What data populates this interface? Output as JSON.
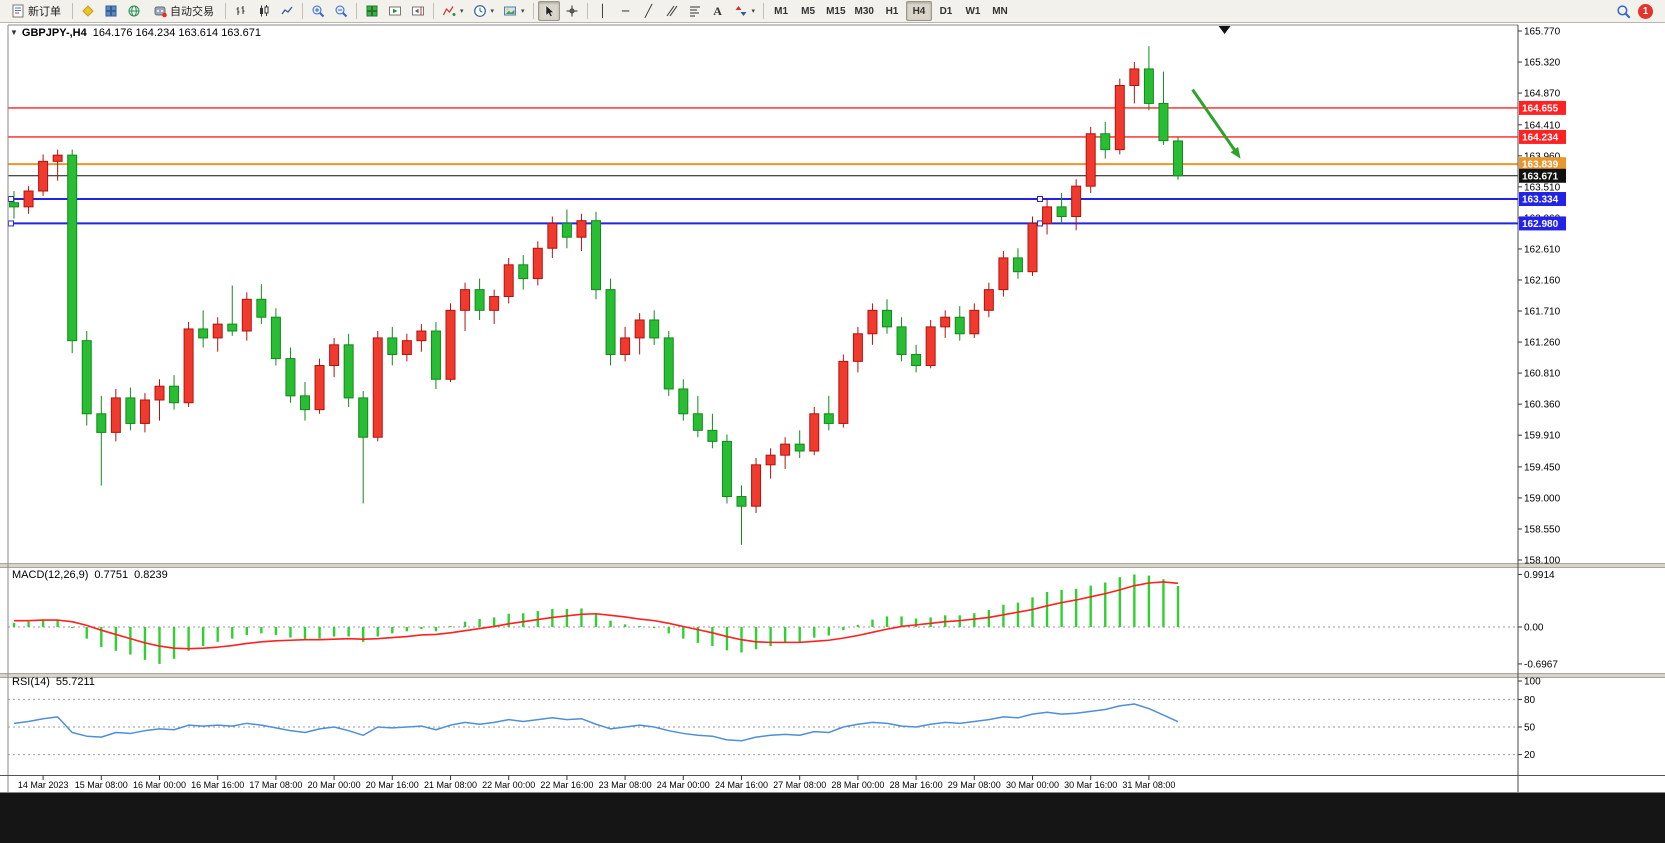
{
  "toolbar": {
    "new_order": "新订单",
    "autotrading": "自动交易",
    "timeframes": [
      "M1",
      "M5",
      "M15",
      "M30",
      "H1",
      "H4",
      "D1",
      "W1",
      "MN"
    ],
    "active_timeframe": "H4",
    "notification_count": "1"
  },
  "chart_title": {
    "symbol_period": "GBPJPY-,H4",
    "ohlc_text": "164.176 164.234 163.614 163.671"
  },
  "indicator_labels": {
    "macd_name": "MACD(12,26,9)",
    "macd_value": "0.7751",
    "macd_signal": "0.8239",
    "rsi_name": "RSI(14)",
    "rsi_value": "55.7211"
  },
  "chart_data": {
    "type": "candlestick",
    "symbol": "GBPJPY-",
    "period": "H4",
    "last_ohlc": {
      "open": 164.176,
      "high": 164.234,
      "low": 163.614,
      "close": 163.671
    },
    "price_axis": {
      "min": 158.1,
      "max": 165.77,
      "ticks": [
        "165.770",
        "165.320",
        "164.870",
        "164.410",
        "163.960",
        "163.510",
        "163.060",
        "162.610",
        "162.160",
        "161.710",
        "161.260",
        "160.810",
        "160.360",
        "159.910",
        "159.450",
        "159.000",
        "158.550",
        "158.100"
      ]
    },
    "colors": {
      "up": "#f03a2e",
      "up_edge": "#b01510",
      "down": "#28bd33",
      "down_edge": "#128a1c",
      "macd_hist": "#2fd12f",
      "macd_signal": "#ff2020",
      "rsi_line": "#4f8fd5",
      "arrow": "#2da32d"
    },
    "hlines": [
      {
        "price": 164.655,
        "color": "#ff2222",
        "label": "164.655",
        "width": 1.4
      },
      {
        "price": 164.234,
        "color": "#ff2222",
        "label": "164.234",
        "width": 1.4
      },
      {
        "price": 163.839,
        "color": "#e8962e",
        "label": "163.839",
        "width": 2
      },
      {
        "price": 163.671,
        "color": "#111111",
        "label": "163.671",
        "width": 1,
        "role": "current-price"
      },
      {
        "price": 163.334,
        "color": "#2323e8",
        "label": "163.334",
        "width": 2,
        "handles": true
      },
      {
        "price": 162.98,
        "color": "#2323e8",
        "label": "162.980",
        "width": 2,
        "handles": true
      }
    ],
    "candles": [
      [
        163.28,
        163.45,
        163.05,
        163.22
      ],
      [
        163.22,
        163.52,
        163.12,
        163.45
      ],
      [
        163.45,
        163.98,
        163.38,
        163.88
      ],
      [
        163.88,
        164.05,
        163.6,
        163.97
      ],
      [
        163.97,
        164.05,
        161.1,
        161.28
      ],
      [
        161.28,
        161.42,
        160.05,
        160.22
      ],
      [
        160.22,
        160.48,
        159.18,
        159.95
      ],
      [
        159.95,
        160.58,
        159.82,
        160.45
      ],
      [
        160.45,
        160.6,
        159.98,
        160.08
      ],
      [
        160.08,
        160.52,
        159.95,
        160.42
      ],
      [
        160.42,
        160.72,
        160.12,
        160.62
      ],
      [
        160.62,
        160.78,
        160.28,
        160.38
      ],
      [
        160.38,
        161.55,
        160.32,
        161.45
      ],
      [
        161.45,
        161.72,
        161.18,
        161.32
      ],
      [
        161.32,
        161.62,
        161.12,
        161.52
      ],
      [
        161.52,
        162.08,
        161.35,
        161.42
      ],
      [
        161.42,
        161.98,
        161.28,
        161.88
      ],
      [
        161.88,
        162.1,
        161.52,
        161.62
      ],
      [
        161.62,
        161.75,
        160.92,
        161.02
      ],
      [
        161.02,
        161.18,
        160.38,
        160.48
      ],
      [
        160.48,
        160.68,
        160.12,
        160.28
      ],
      [
        160.28,
        161.02,
        160.22,
        160.92
      ],
      [
        160.92,
        161.32,
        160.75,
        161.22
      ],
      [
        161.22,
        161.38,
        160.32,
        160.45
      ],
      [
        160.45,
        160.55,
        158.92,
        159.88
      ],
      [
        159.88,
        161.42,
        159.82,
        161.32
      ],
      [
        161.32,
        161.48,
        160.92,
        161.08
      ],
      [
        161.08,
        161.38,
        160.98,
        161.28
      ],
      [
        161.28,
        161.52,
        161.12,
        161.42
      ],
      [
        161.42,
        161.55,
        160.58,
        160.72
      ],
      [
        160.72,
        161.82,
        160.68,
        161.72
      ],
      [
        161.72,
        162.12,
        161.42,
        162.02
      ],
      [
        162.02,
        162.18,
        161.58,
        161.72
      ],
      [
        161.72,
        162.02,
        161.52,
        161.92
      ],
      [
        161.92,
        162.48,
        161.82,
        162.38
      ],
      [
        162.38,
        162.52,
        162.02,
        162.18
      ],
      [
        162.18,
        162.72,
        162.08,
        162.62
      ],
      [
        162.62,
        163.08,
        162.48,
        162.98
      ],
      [
        162.98,
        163.18,
        162.62,
        162.78
      ],
      [
        162.78,
        163.12,
        162.58,
        163.02
      ],
      [
        163.02,
        163.15,
        161.88,
        162.02
      ],
      [
        162.02,
        162.18,
        160.92,
        161.08
      ],
      [
        161.08,
        161.48,
        160.98,
        161.32
      ],
      [
        161.32,
        161.68,
        161.08,
        161.58
      ],
      [
        161.58,
        161.72,
        161.22,
        161.32
      ],
      [
        161.32,
        161.42,
        160.48,
        160.58
      ],
      [
        160.58,
        160.72,
        160.12,
        160.22
      ],
      [
        160.22,
        160.48,
        159.88,
        159.98
      ],
      [
        159.98,
        160.22,
        159.72,
        159.82
      ],
      [
        159.82,
        159.92,
        158.92,
        159.02
      ],
      [
        159.02,
        159.18,
        158.32,
        158.88
      ],
      [
        158.88,
        159.58,
        158.78,
        159.48
      ],
      [
        159.48,
        159.72,
        159.28,
        159.62
      ],
      [
        159.62,
        159.88,
        159.42,
        159.78
      ],
      [
        159.78,
        159.98,
        159.58,
        159.68
      ],
      [
        159.68,
        160.32,
        159.62,
        160.22
      ],
      [
        160.22,
        160.48,
        159.98,
        160.08
      ],
      [
        160.08,
        161.08,
        160.02,
        160.98
      ],
      [
        160.98,
        161.48,
        160.82,
        161.38
      ],
      [
        161.38,
        161.82,
        161.22,
        161.72
      ],
      [
        161.72,
        161.88,
        161.38,
        161.48
      ],
      [
        161.48,
        161.62,
        160.98,
        161.08
      ],
      [
        161.08,
        161.22,
        160.82,
        160.92
      ],
      [
        160.92,
        161.58,
        160.88,
        161.48
      ],
      [
        161.48,
        161.72,
        161.32,
        161.62
      ],
      [
        161.62,
        161.78,
        161.28,
        161.38
      ],
      [
        161.38,
        161.82,
        161.32,
        161.72
      ],
      [
        161.72,
        162.12,
        161.62,
        162.02
      ],
      [
        162.02,
        162.58,
        161.92,
        162.48
      ],
      [
        162.48,
        162.62,
        162.18,
        162.28
      ],
      [
        162.28,
        163.08,
        162.22,
        162.98
      ],
      [
        162.98,
        163.32,
        162.82,
        163.22
      ],
      [
        163.22,
        163.42,
        162.98,
        163.08
      ],
      [
        163.08,
        163.62,
        162.88,
        163.52
      ],
      [
        163.52,
        164.38,
        163.42,
        164.28
      ],
      [
        164.28,
        164.45,
        163.92,
        164.05
      ],
      [
        164.05,
        165.08,
        163.98,
        164.98
      ],
      [
        164.98,
        165.32,
        164.72,
        165.22
      ],
      [
        165.22,
        165.55,
        164.62,
        164.72
      ],
      [
        164.72,
        165.18,
        164.12,
        164.18
      ],
      [
        164.176,
        164.234,
        163.614,
        163.671
      ]
    ],
    "time_labels": [
      {
        "index": 2,
        "text": "14 Mar 2023"
      },
      {
        "index": 6,
        "text": "15 Mar 08:00"
      },
      {
        "index": 10,
        "text": "16 Mar 00:00"
      },
      {
        "index": 14,
        "text": "16 Mar 16:00"
      },
      {
        "index": 18,
        "text": "17 Mar 08:00"
      },
      {
        "index": 22,
        "text": "20 Mar 00:00"
      },
      {
        "index": 26,
        "text": "20 Mar 16:00"
      },
      {
        "index": 30,
        "text": "21 Mar 08:00"
      },
      {
        "index": 34,
        "text": "22 Mar 00:00"
      },
      {
        "index": 38,
        "text": "22 Mar 16:00"
      },
      {
        "index": 42,
        "text": "23 Mar 08:00"
      },
      {
        "index": 46,
        "text": "24 Mar 00:00"
      },
      {
        "index": 50,
        "text": "24 Mar 16:00"
      },
      {
        "index": 54,
        "text": "27 Mar 08:00"
      },
      {
        "index": 58,
        "text": "28 Mar 00:00"
      },
      {
        "index": 62,
        "text": "28 Mar 16:00"
      },
      {
        "index": 66,
        "text": "29 Mar 08:00"
      },
      {
        "index": 70,
        "text": "30 Mar 00:00"
      },
      {
        "index": 74,
        "text": "30 Mar 16:00"
      },
      {
        "index": 78,
        "text": "31 Mar 08:00"
      }
    ],
    "arrow_annotation": {
      "from_index": 81,
      "from_price": 164.92,
      "to_index": 84.3,
      "to_price": 163.92
    },
    "shift_marker_index": 83.2,
    "macd": {
      "scale_ticks": [
        {
          "v": 0.9914,
          "text": "0.9914"
        },
        {
          "v": 0,
          "text": "0.00"
        },
        {
          "v": -0.6967,
          "text": "-0.6967"
        }
      ],
      "histogram": [
        0.08,
        0.1,
        0.14,
        0.13,
        -0.02,
        -0.22,
        -0.38,
        -0.45,
        -0.52,
        -0.62,
        -0.6967,
        -0.6,
        -0.45,
        -0.36,
        -0.28,
        -0.22,
        -0.15,
        -0.12,
        -0.15,
        -0.2,
        -0.24,
        -0.22,
        -0.18,
        -0.18,
        -0.28,
        -0.18,
        -0.12,
        -0.08,
        -0.04,
        -0.08,
        0.02,
        0.1,
        0.15,
        0.18,
        0.25,
        0.26,
        0.3,
        0.34,
        0.34,
        0.35,
        0.26,
        0.12,
        0.05,
        0.02,
        -0.02,
        -0.12,
        -0.22,
        -0.3,
        -0.36,
        -0.44,
        -0.48,
        -0.42,
        -0.36,
        -0.3,
        -0.28,
        -0.2,
        -0.16,
        -0.06,
        0.04,
        0.14,
        0.2,
        0.2,
        0.16,
        0.18,
        0.22,
        0.22,
        0.26,
        0.32,
        0.42,
        0.46,
        0.56,
        0.66,
        0.7,
        0.72,
        0.78,
        0.84,
        0.94,
        0.9914,
        0.97,
        0.9,
        0.7751
      ],
      "signal": [
        0.12,
        0.12,
        0.13,
        0.13,
        0.1,
        0.03,
        -0.06,
        -0.14,
        -0.22,
        -0.3,
        -0.36,
        -0.4,
        -0.41,
        -0.4,
        -0.38,
        -0.35,
        -0.31,
        -0.28,
        -0.26,
        -0.25,
        -0.24,
        -0.24,
        -0.23,
        -0.22,
        -0.23,
        -0.22,
        -0.2,
        -0.18,
        -0.15,
        -0.14,
        -0.11,
        -0.07,
        -0.03,
        0.01,
        0.06,
        0.1,
        0.14,
        0.18,
        0.21,
        0.24,
        0.25,
        0.22,
        0.19,
        0.15,
        0.12,
        0.07,
        0.01,
        -0.05,
        -0.11,
        -0.18,
        -0.24,
        -0.28,
        -0.29,
        -0.29,
        -0.29,
        -0.27,
        -0.25,
        -0.21,
        -0.16,
        -0.1,
        -0.04,
        0.01,
        0.04,
        0.07,
        0.1,
        0.12,
        0.15,
        0.18,
        0.23,
        0.28,
        0.33,
        0.4,
        0.46,
        0.51,
        0.57,
        0.63,
        0.7,
        0.78,
        0.83,
        0.85,
        0.8239
      ]
    },
    "rsi": {
      "scale_ticks": [
        {
          "v": 100,
          "text": "100"
        },
        {
          "v": 80,
          "text": "80"
        },
        {
          "v": 50,
          "text": "50"
        },
        {
          "v": 20,
          "text": "20"
        }
      ],
      "levels": [
        80,
        50,
        20
      ],
      "values": [
        54,
        56,
        59,
        61,
        44,
        40,
        39,
        44,
        43,
        46,
        48,
        47,
        52,
        51,
        52,
        51,
        54,
        52,
        49,
        46,
        44,
        48,
        50,
        46,
        41,
        50,
        49,
        50,
        51,
        47,
        52,
        55,
        53,
        55,
        58,
        56,
        58,
        60,
        58,
        59,
        53,
        48,
        50,
        52,
        50,
        46,
        43,
        41,
        40,
        36,
        35,
        39,
        41,
        42,
        41,
        45,
        44,
        50,
        53,
        55,
        54,
        51,
        50,
        53,
        55,
        54,
        56,
        58,
        61,
        60,
        64,
        66,
        64,
        65,
        67,
        69,
        73,
        75,
        70,
        63,
        55.72
      ]
    }
  }
}
